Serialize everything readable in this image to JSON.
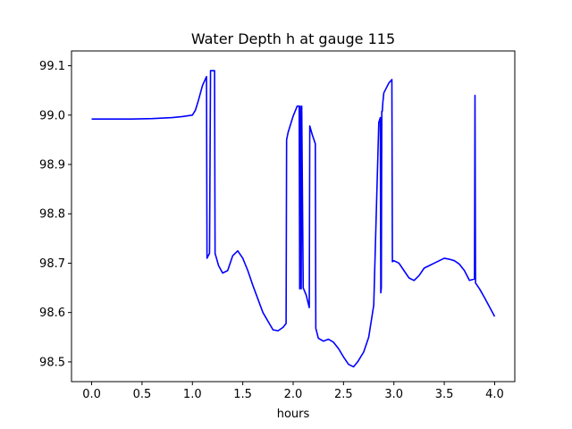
{
  "chart_data": {
    "type": "line",
    "title": "Water Depth h at gauge 115",
    "xlabel": "hours",
    "ylabel": "",
    "xlim": [
      -0.2,
      4.2
    ],
    "ylim": [
      98.46,
      99.13
    ],
    "grid": false,
    "x_ticks": [
      0.0,
      0.5,
      1.0,
      1.5,
      2.0,
      2.5,
      3.0,
      3.5,
      4.0
    ],
    "x_tick_labels": [
      "0.0",
      "0.5",
      "1.0",
      "1.5",
      "2.0",
      "2.5",
      "3.0",
      "3.5",
      "4.0"
    ],
    "y_ticks": [
      98.5,
      98.6,
      98.7,
      98.8,
      98.9,
      99.0,
      99.1
    ],
    "y_tick_labels": [
      "98.5",
      "98.6",
      "98.7",
      "98.8",
      "98.9",
      "99.0",
      "99.1"
    ],
    "series": [
      {
        "color": "#0000ff",
        "x": [
          0.0,
          0.2,
          0.4,
          0.6,
          0.8,
          0.9,
          1.0,
          1.03,
          1.06,
          1.1,
          1.14,
          1.145,
          1.17,
          1.18,
          1.185,
          1.22,
          1.225,
          1.26,
          1.3,
          1.35,
          1.4,
          1.45,
          1.5,
          1.55,
          1.6,
          1.7,
          1.8,
          1.85,
          1.9,
          1.93,
          1.935,
          1.95,
          2.0,
          2.04,
          2.06,
          2.065,
          2.07,
          2.08,
          2.085,
          2.1,
          2.13,
          2.16,
          2.165,
          2.19,
          2.22,
          2.225,
          2.25,
          2.3,
          2.35,
          2.4,
          2.45,
          2.5,
          2.55,
          2.6,
          2.64,
          2.7,
          2.75,
          2.8,
          2.85,
          2.865,
          2.87,
          2.875,
          2.88,
          2.885,
          2.89,
          2.9,
          2.95,
          2.98,
          2.985,
          3.0,
          3.05,
          3.1,
          3.15,
          3.2,
          3.25,
          3.3,
          3.35,
          3.4,
          3.45,
          3.5,
          3.55,
          3.6,
          3.65,
          3.7,
          3.75,
          3.8,
          3.805,
          3.81,
          3.85,
          3.9,
          3.95,
          4.0
        ],
        "y": [
          98.992,
          98.992,
          98.992,
          98.993,
          98.995,
          98.997,
          99.0,
          99.01,
          99.03,
          99.06,
          99.078,
          98.71,
          98.72,
          99.09,
          99.09,
          99.09,
          98.72,
          98.695,
          98.68,
          98.685,
          98.715,
          98.725,
          98.71,
          98.685,
          98.655,
          98.6,
          98.565,
          98.563,
          98.57,
          98.578,
          98.95,
          98.965,
          98.998,
          99.018,
          99.018,
          98.648,
          99.018,
          98.648,
          99.018,
          98.65,
          98.635,
          98.61,
          98.978,
          98.96,
          98.942,
          98.568,
          98.548,
          98.542,
          98.546,
          98.54,
          98.527,
          98.51,
          98.495,
          98.49,
          98.5,
          98.52,
          98.55,
          98.615,
          98.985,
          98.995,
          98.64,
          98.65,
          99.008,
          99.008,
          99.025,
          99.045,
          99.065,
          99.072,
          98.703,
          98.705,
          98.7,
          98.685,
          98.67,
          98.665,
          98.675,
          98.69,
          98.695,
          98.7,
          98.705,
          98.71,
          98.708,
          98.705,
          98.698,
          98.685,
          98.665,
          98.668,
          99.04,
          98.66,
          98.648,
          98.63,
          98.611,
          98.592
        ]
      }
    ]
  }
}
